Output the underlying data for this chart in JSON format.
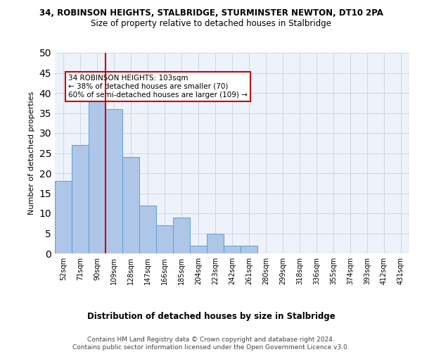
{
  "title1": "34, ROBINSON HEIGHTS, STALBRIDGE, STURMINSTER NEWTON, DT10 2PA",
  "title2": "Size of property relative to detached houses in Stalbridge",
  "xlabel": "Distribution of detached houses by size in Stalbridge",
  "ylabel": "Number of detached properties",
  "bar_labels": [
    "52sqm",
    "71sqm",
    "90sqm",
    "109sqm",
    "128sqm",
    "147sqm",
    "166sqm",
    "185sqm",
    "204sqm",
    "223sqm",
    "242sqm",
    "261sqm",
    "280sqm",
    "299sqm",
    "318sqm",
    "336sqm",
    "355sqm",
    "374sqm",
    "393sqm",
    "412sqm",
    "431sqm"
  ],
  "bar_values": [
    18,
    27,
    38,
    36,
    24,
    12,
    7,
    9,
    2,
    5,
    2,
    2,
    0,
    0,
    0,
    0,
    0,
    0,
    0,
    0,
    0
  ],
  "bar_color": "#aec6e8",
  "bar_edge_color": "#5a9fd4",
  "ylim": [
    0,
    50
  ],
  "yticks": [
    0,
    5,
    10,
    15,
    20,
    25,
    30,
    35,
    40,
    45,
    50
  ],
  "vline_color": "#cc0000",
  "annotation_text": "34 ROBINSON HEIGHTS: 103sqm\n← 38% of detached houses are smaller (70)\n60% of semi-detached houses are larger (109) →",
  "annotation_box_color": "#ffffff",
  "annotation_box_edge": "#cc0000",
  "grid_color": "#d0d8e8",
  "background_color": "#eef2fa",
  "footer_text": "Contains HM Land Registry data © Crown copyright and database right 2024.\nContains public sector information licensed under the Open Government Licence v3.0."
}
